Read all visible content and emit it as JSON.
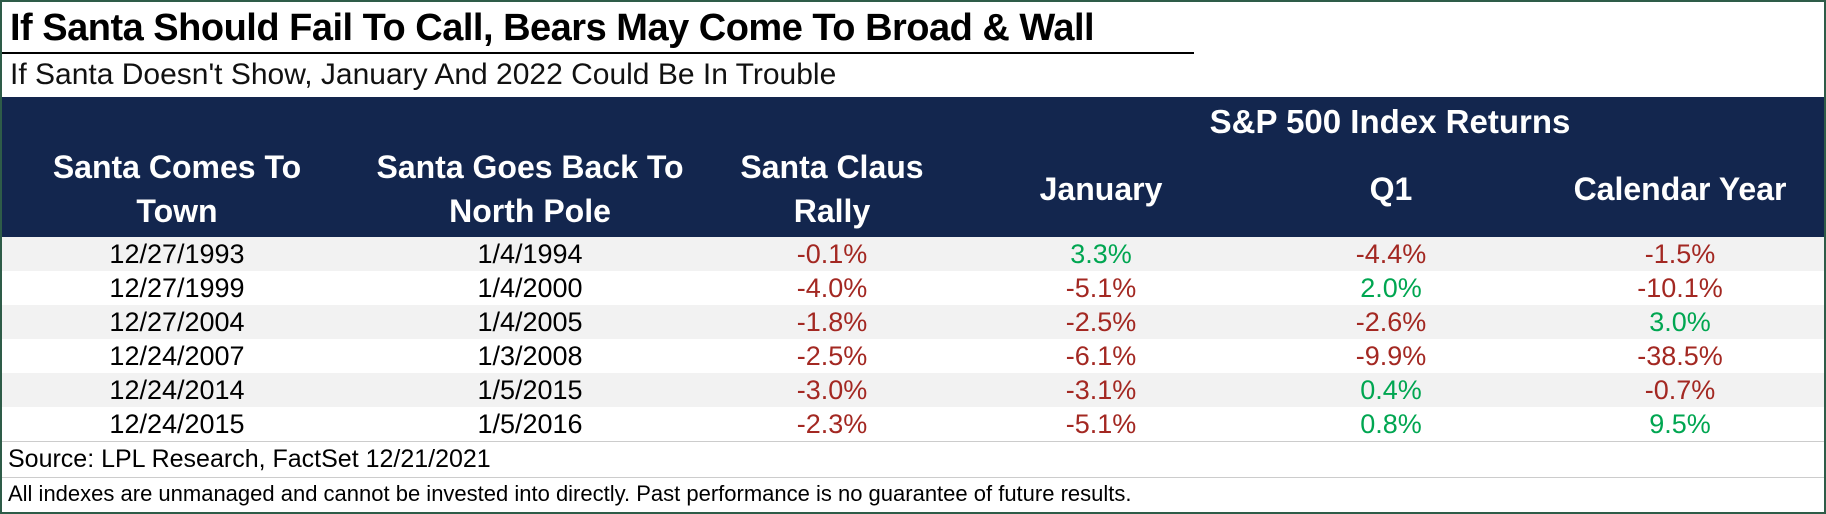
{
  "title": "If Santa Should Fail To Call, Bears May Come To Broad & Wall",
  "subtitle": "If Santa Doesn't Show, January And 2022 Could Be In Trouble",
  "colors": {
    "header_bg": "#13264E",
    "negative_value": "#A32822",
    "positive_value": "#00A651",
    "row_stripe": "#F2F2F2",
    "frame_border": "#2E5C48"
  },
  "table": {
    "group_header": "S&P 500 Index Returns",
    "columns": [
      {
        "line1": "Santa Comes To",
        "line2": "Town"
      },
      {
        "line1": "Santa Goes Back To",
        "line2": "North Pole"
      },
      {
        "line1": "Santa Claus",
        "line2": "Rally"
      },
      {
        "line1": "January"
      },
      {
        "line1": "Q1"
      },
      {
        "line1": "Calendar Year"
      }
    ],
    "rows": [
      {
        "cells": [
          {
            "text": "12/27/1993",
            "tone": "date"
          },
          {
            "text": "1/4/1994",
            "tone": "date"
          },
          {
            "text": "-0.1%",
            "tone": "neg"
          },
          {
            "text": "3.3%",
            "tone": "pos"
          },
          {
            "text": "-4.4%",
            "tone": "neg"
          },
          {
            "text": "-1.5%",
            "tone": "neg"
          }
        ]
      },
      {
        "cells": [
          {
            "text": "12/27/1999",
            "tone": "date"
          },
          {
            "text": "1/4/2000",
            "tone": "date"
          },
          {
            "text": "-4.0%",
            "tone": "neg"
          },
          {
            "text": "-5.1%",
            "tone": "neg"
          },
          {
            "text": "2.0%",
            "tone": "pos"
          },
          {
            "text": "-10.1%",
            "tone": "neg"
          }
        ]
      },
      {
        "cells": [
          {
            "text": "12/27/2004",
            "tone": "date"
          },
          {
            "text": "1/4/2005",
            "tone": "date"
          },
          {
            "text": "-1.8%",
            "tone": "neg"
          },
          {
            "text": "-2.5%",
            "tone": "neg"
          },
          {
            "text": "-2.6%",
            "tone": "neg"
          },
          {
            "text": "3.0%",
            "tone": "pos"
          }
        ]
      },
      {
        "cells": [
          {
            "text": "12/24/2007",
            "tone": "date"
          },
          {
            "text": "1/3/2008",
            "tone": "date"
          },
          {
            "text": "-2.5%",
            "tone": "neg"
          },
          {
            "text": "-6.1%",
            "tone": "neg"
          },
          {
            "text": "-9.9%",
            "tone": "neg"
          },
          {
            "text": "-38.5%",
            "tone": "neg"
          }
        ]
      },
      {
        "cells": [
          {
            "text": "12/24/2014",
            "tone": "date"
          },
          {
            "text": "1/5/2015",
            "tone": "date"
          },
          {
            "text": "-3.0%",
            "tone": "neg"
          },
          {
            "text": "-3.1%",
            "tone": "neg"
          },
          {
            "text": "0.4%",
            "tone": "pos"
          },
          {
            "text": "-0.7%",
            "tone": "neg"
          }
        ]
      },
      {
        "cells": [
          {
            "text": "12/24/2015",
            "tone": "date"
          },
          {
            "text": "1/5/2016",
            "tone": "date"
          },
          {
            "text": "-2.3%",
            "tone": "neg"
          },
          {
            "text": "-5.1%",
            "tone": "neg"
          },
          {
            "text": "0.8%",
            "tone": "pos"
          },
          {
            "text": "9.5%",
            "tone": "pos"
          }
        ]
      }
    ]
  },
  "footer": {
    "source": "Source: LPL Research, FactSet 12/21/2021",
    "disclaimer": "All indexes are unmanaged and cannot be invested into directly. Past performance is no guarantee of future results."
  },
  "chart_data": {
    "type": "table",
    "title": "If Santa Should Fail To Call, Bears May Come To Broad & Wall",
    "subtitle": "If Santa Doesn't Show, January And 2022 Could Be In Trouble",
    "group_header": "S&P 500 Index Returns (columns: January, Q1, Calendar Year)",
    "columns": [
      "Santa Comes To Town",
      "Santa Goes Back To North Pole",
      "Santa Claus Rally",
      "January",
      "Q1",
      "Calendar Year"
    ],
    "rows": [
      [
        "12/27/1993",
        "1/4/1994",
        "-0.1%",
        "3.3%",
        "-4.4%",
        "-1.5%"
      ],
      [
        "12/27/1999",
        "1/4/2000",
        "-4.0%",
        "-5.1%",
        "2.0%",
        "-10.1%"
      ],
      [
        "12/27/2004",
        "1/4/2005",
        "-1.8%",
        "-2.5%",
        "-2.6%",
        "3.0%"
      ],
      [
        "12/24/2007",
        "1/3/2008",
        "-2.5%",
        "-6.1%",
        "-9.9%",
        "-38.5%"
      ],
      [
        "12/24/2014",
        "1/5/2015",
        "-3.0%",
        "-3.1%",
        "0.4%",
        "-0.7%"
      ],
      [
        "12/24/2015",
        "1/5/2016",
        "-2.3%",
        "-5.1%",
        "0.8%",
        "9.5%"
      ]
    ],
    "value_color_rule": "negative returns dark red (#A32822), positive returns green (#00A651)"
  }
}
